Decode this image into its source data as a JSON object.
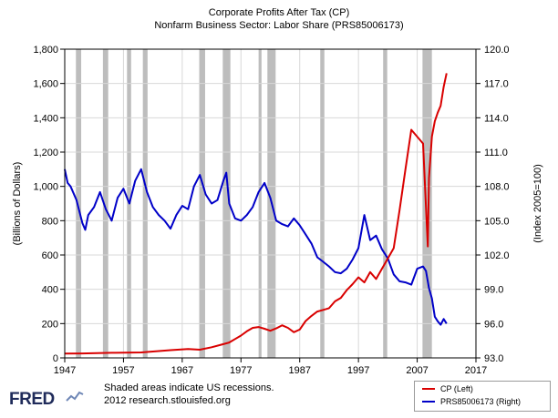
{
  "header": {
    "title_line1": "Corporate Profits After Tax (CP)",
    "title_line2": "Nonfarm Business Sector: Labor Share (PRS85006173)"
  },
  "footer": {
    "logo_text": "FRED",
    "note_line1": "Shaded areas indicate US recessions.",
    "note_line2": "2012 research.stlouisfed.org"
  },
  "colors": {
    "cp": "#d90000",
    "labor": "#0000c8",
    "recession": "#bdbdbd",
    "grid": "#d8d8d8"
  },
  "chart_data": {
    "type": "line",
    "xlabel": "",
    "xlim": [
      1947,
      2017
    ],
    "x_ticks": [
      1947,
      1957,
      1967,
      1977,
      1987,
      1997,
      2007,
      2017
    ],
    "x_tick_labels": [
      "1947",
      "1957",
      "1967",
      "1977",
      "1987",
      "1997",
      "2007",
      "2017"
    ],
    "ylabel_left": "(Billions of Dollars)",
    "ylim_left": [
      0,
      1800
    ],
    "y_ticks_left": [
      "0",
      "200",
      "400",
      "600",
      "800",
      "1,000",
      "1,200",
      "1,400",
      "1,600",
      "1,800"
    ],
    "ylabel_right": "(Index 2005=100)",
    "ylim_right": [
      93,
      120
    ],
    "y_ticks_right": [
      "93.0",
      "96.0",
      "99.0",
      "102.0",
      "105.0",
      "108.0",
      "111.0",
      "114.0",
      "117.0",
      "120.0"
    ],
    "recessions": [
      [
        1948.9,
        1949.8
      ],
      [
        1953.5,
        1954.4
      ],
      [
        1957.6,
        1958.3
      ],
      [
        1960.3,
        1961.1
      ],
      [
        1969.9,
        1970.9
      ],
      [
        1973.9,
        1975.2
      ],
      [
        1980.0,
        1980.5
      ],
      [
        1981.5,
        1982.9
      ],
      [
        1990.5,
        1991.2
      ],
      [
        2001.2,
        2001.9
      ],
      [
        2007.9,
        2009.5
      ]
    ],
    "series": [
      {
        "name": "CP (Left)",
        "axis": "left",
        "x": [
          1947,
          1950,
          1955,
          1960,
          1965,
          1968,
          1970,
          1972,
          1974,
          1975,
          1976,
          1977,
          1978,
          1979,
          1980,
          1981,
          1982,
          1983,
          1984,
          1985,
          1986,
          1987,
          1988,
          1989,
          1990,
          1991,
          1992,
          1993,
          1994,
          1995,
          1996,
          1997,
          1998,
          1999,
          2000,
          2001,
          2002,
          2003,
          2004,
          2005,
          2006,
          2007,
          2008,
          2008.5,
          2008.8,
          2009,
          2009.5,
          2010,
          2010.5,
          2011,
          2011.5,
          2012
        ],
        "values": [
          25,
          26,
          30,
          32,
          45,
          52,
          48,
          62,
          80,
          90,
          110,
          130,
          155,
          175,
          180,
          170,
          158,
          172,
          190,
          175,
          150,
          165,
          215,
          245,
          270,
          280,
          290,
          330,
          350,
          395,
          430,
          470,
          440,
          500,
          460,
          520,
          580,
          640,
          860,
          1100,
          1330,
          1290,
          1250,
          880,
          650,
          1050,
          1290,
          1380,
          1430,
          1470,
          1580,
          1660
        ]
      },
      {
        "name": "PRS85006173 (Right)",
        "axis": "right",
        "x": [
          1947,
          1947.5,
          1948,
          1949,
          1950,
          1950.5,
          1951,
          1952,
          1953,
          1954,
          1955,
          1956,
          1957,
          1958,
          1959,
          1960,
          1961,
          1962,
          1963,
          1964,
          1965,
          1966,
          1967,
          1968,
          1969,
          1970,
          1971,
          1972,
          1973,
          1974,
          1974.5,
          1975,
          1976,
          1977,
          1978,
          1979,
          1980,
          1981,
          1982,
          1983,
          1984,
          1985,
          1986,
          1987,
          1988,
          1989,
          1990,
          1991,
          1992,
          1993,
          1994,
          1995,
          1996,
          1997,
          1998,
          1999,
          2000,
          2001,
          2002,
          2003,
          2004,
          2005,
          2006,
          2007,
          2008,
          2008.5,
          2009,
          2009.5,
          2010,
          2010.5,
          2011,
          2011.5,
          2012
        ],
        "values": [
          109.5,
          108.3,
          108.0,
          106.8,
          104.8,
          104.2,
          105.5,
          106.2,
          107.5,
          106.0,
          105.0,
          107.0,
          107.8,
          106.5,
          108.5,
          109.5,
          107.5,
          106.2,
          105.5,
          105.0,
          104.3,
          105.5,
          106.3,
          106.0,
          108.0,
          109.0,
          107.3,
          106.5,
          106.8,
          108.5,
          109.2,
          106.5,
          105.2,
          105.0,
          105.5,
          106.2,
          107.5,
          108.3,
          107.0,
          105.0,
          104.7,
          104.5,
          105.2,
          104.6,
          103.8,
          103.0,
          101.8,
          101.4,
          101.0,
          100.5,
          100.4,
          100.8,
          101.6,
          102.6,
          105.5,
          103.3,
          103.7,
          102.5,
          101.7,
          100.3,
          99.7,
          99.6,
          99.4,
          100.8,
          101.0,
          100.6,
          99.1,
          98.2,
          96.6,
          96.2,
          95.9,
          96.4,
          96.0
        ]
      }
    ]
  },
  "legend": {
    "items": [
      {
        "label": "CP (Left)",
        "color": "#d90000"
      },
      {
        "label": "PRS85006173 (Right)",
        "color": "#0000c8"
      }
    ]
  }
}
